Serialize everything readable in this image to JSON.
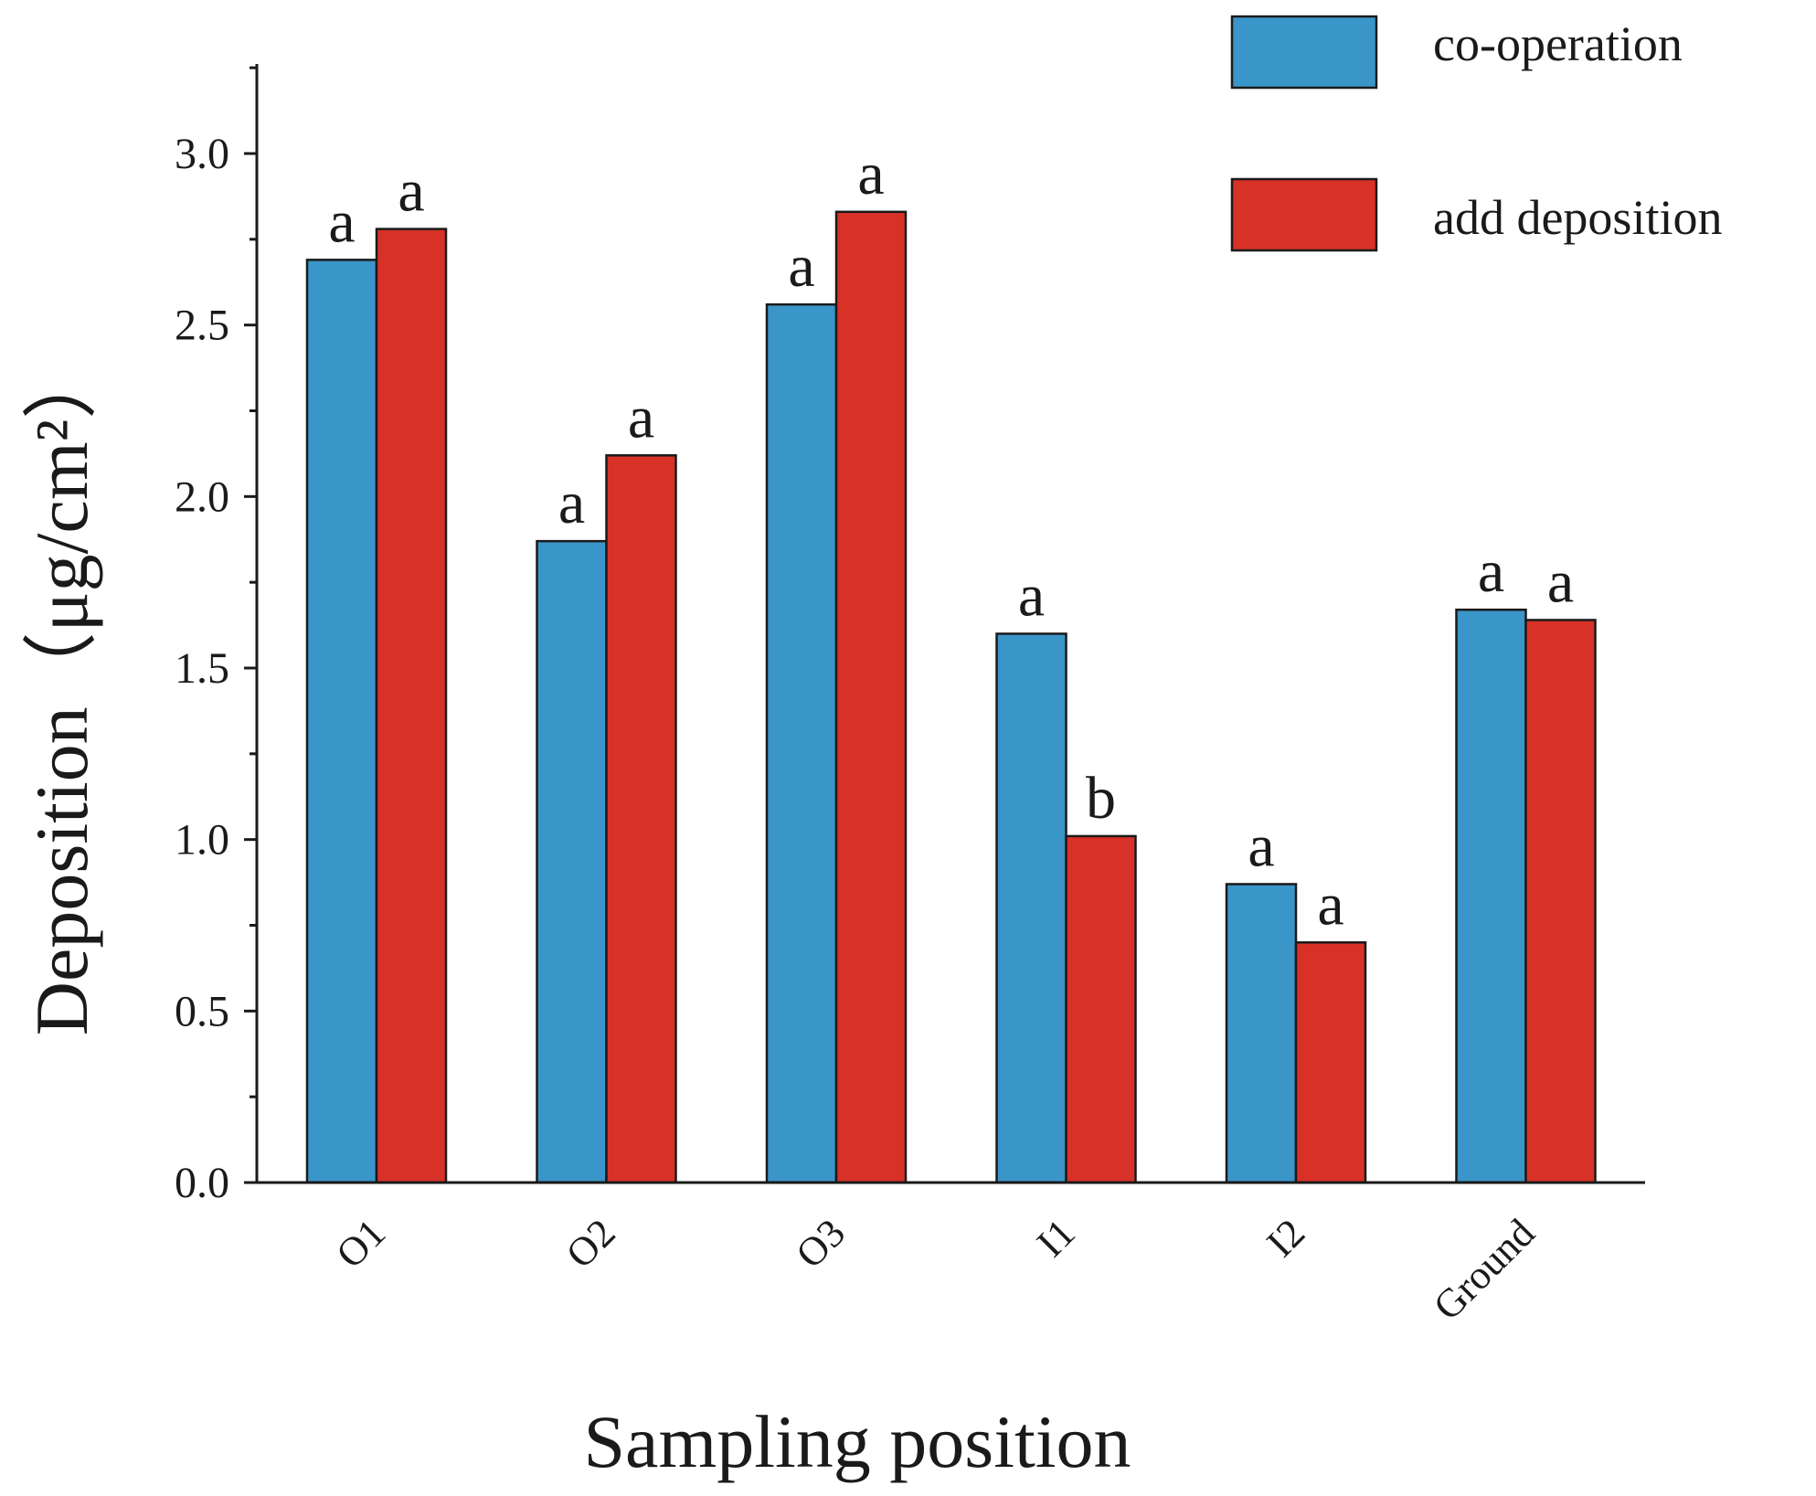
{
  "chart_data": {
    "type": "bar",
    "categories": [
      "O1",
      "O2",
      "O3",
      "I1",
      "I2",
      "Ground"
    ],
    "series": [
      {
        "name": "co-operation",
        "color": "#3a95c8",
        "values": [
          2.69,
          1.87,
          2.56,
          1.6,
          0.87,
          1.67
        ],
        "significance": [
          "a",
          "a",
          "a",
          "a",
          "a",
          "a"
        ]
      },
      {
        "name": "add deposition",
        "color": "#d83127",
        "values": [
          2.78,
          2.12,
          2.83,
          1.01,
          0.7,
          1.64
        ],
        "significance": [
          "a",
          "a",
          "a",
          "b",
          "a",
          "a"
        ]
      }
    ],
    "xlabel": "Sampling position",
    "ylabel": "Deposition（μg/cm²）",
    "ylim": [
      0,
      3.25
    ],
    "yticks": [
      "0.0",
      "0.5",
      "1.0",
      "1.5",
      "2.0",
      "2.5",
      "3.0"
    ],
    "grid": false,
    "legend_position": "top-right"
  }
}
